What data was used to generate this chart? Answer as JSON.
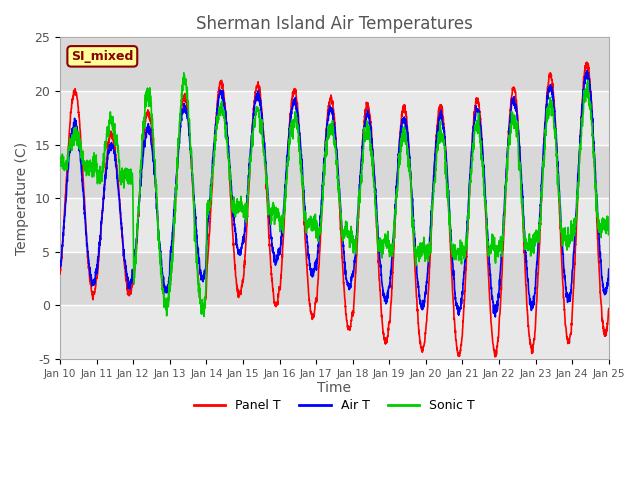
{
  "title": "Sherman Island Air Temperatures",
  "xlabel": "Time",
  "ylabel": "Temperature (C)",
  "ylim": [
    -5,
    25
  ],
  "xlim": [
    0,
    15
  ],
  "x_tick_labels": [
    "Jan 10",
    "Jan 11",
    "Jan 12",
    "Jan 13",
    "Jan 14",
    "Jan 15",
    "Jan 16",
    "Jan 17",
    "Jan 18",
    "Jan 19",
    "Jan 20",
    "Jan 21",
    "Jan 22",
    "Jan 23",
    "Jan 24",
    "Jan 25"
  ],
  "yticks": [
    -5,
    0,
    5,
    10,
    15,
    20,
    25
  ],
  "annotation_text": "SI_mixed",
  "annotation_color": "#8B0000",
  "annotation_bg": "#FFFF99",
  "panel_color": "#FF0000",
  "air_color": "#0000FF",
  "sonic_color": "#00CC00",
  "legend_labels": [
    "Panel T",
    "Air T",
    "Sonic T"
  ],
  "band_colors": [
    "#E8E8E8",
    "#D8D8D8"
  ],
  "grid_color": "#FFFFFF",
  "title_color": "#555555",
  "axis_color": "#555555"
}
